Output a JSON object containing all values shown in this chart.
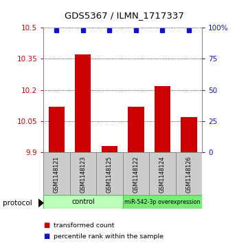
{
  "title": "GDS5367 / ILMN_1717337",
  "samples": [
    "GSM1148121",
    "GSM1148123",
    "GSM1148125",
    "GSM1148122",
    "GSM1148124",
    "GSM1148126"
  ],
  "transformed_counts": [
    10.12,
    10.37,
    9.93,
    10.12,
    10.22,
    10.07
  ],
  "percentile_ranks": [
    98,
    98,
    98,
    98,
    98,
    98
  ],
  "ylim": [
    9.9,
    10.5
  ],
  "yticks_left": [
    9.9,
    10.05,
    10.2,
    10.35,
    10.5
  ],
  "yticks_right": [
    0,
    25,
    50,
    75,
    100
  ],
  "bar_color": "#cc0000",
  "dot_color": "#1111cc",
  "protocol_label": "protocol",
  "legend_bar_label": "transformed count",
  "legend_dot_label": "percentile rank within the sample",
  "background_color": "#ffffff",
  "group_control_color": "#bbffbb",
  "group_mir_color": "#77ee77",
  "sample_box_color": "#cccccc",
  "sample_box_edge": "#888888"
}
